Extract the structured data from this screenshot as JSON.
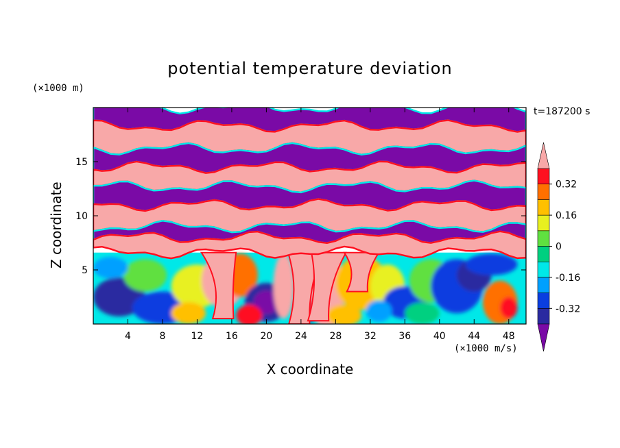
{
  "chart_data": {
    "type": "heatmap",
    "title": "potential temperature deviation",
    "xlabel": "X coordinate",
    "ylabel": "Z coordinate",
    "x_unit": "(×1000 m/s)",
    "y_unit": "(×1000 m)",
    "time_label": "t=187200 s",
    "xlim": [
      0,
      50
    ],
    "ylim": [
      0,
      20
    ],
    "x_ticks": [
      4,
      8,
      12,
      16,
      20,
      24,
      28,
      32,
      36,
      40,
      44,
      48
    ],
    "y_ticks": [
      5,
      10,
      15
    ],
    "colorbar": {
      "tick_labels": [
        "0.32",
        "0.16",
        "0",
        "-0.16",
        "-0.32"
      ],
      "tick_values": [
        0.32,
        0.16,
        0,
        -0.16,
        -0.32
      ],
      "levels": [
        -0.4,
        -0.32,
        -0.24,
        -0.16,
        -0.08,
        0,
        0.08,
        0.16,
        0.24,
        0.32,
        0.4
      ],
      "colors": [
        "#7a0aa6",
        "#2a2aa0",
        "#0a3ee0",
        "#00a0ff",
        "#00e8e8",
        "#00d080",
        "#60e040",
        "#e8f020",
        "#ffc000",
        "#ff7000",
        "#ff1020",
        "#f8a8a8"
      ]
    },
    "bands": [
      {
        "z_top": 20.0,
        "z_bottom": 18.3,
        "level": "low"
      },
      {
        "z_top": 18.3,
        "z_bottom": 16.2,
        "level": "high"
      },
      {
        "z_top": 16.2,
        "z_bottom": 14.5,
        "level": "low"
      },
      {
        "z_top": 14.5,
        "z_bottom": 12.7,
        "level": "high"
      },
      {
        "z_top": 12.7,
        "z_bottom": 11.0,
        "level": "low"
      },
      {
        "z_top": 11.0,
        "z_bottom": 9.0,
        "level": "high"
      },
      {
        "z_top": 9.0,
        "z_bottom": 8.0,
        "level": "low"
      },
      {
        "z_top": 8.0,
        "z_bottom": 6.6,
        "level": "high"
      },
      {
        "z_top": 6.6,
        "z_bottom": 0.0,
        "level": "mixed"
      }
    ]
  }
}
